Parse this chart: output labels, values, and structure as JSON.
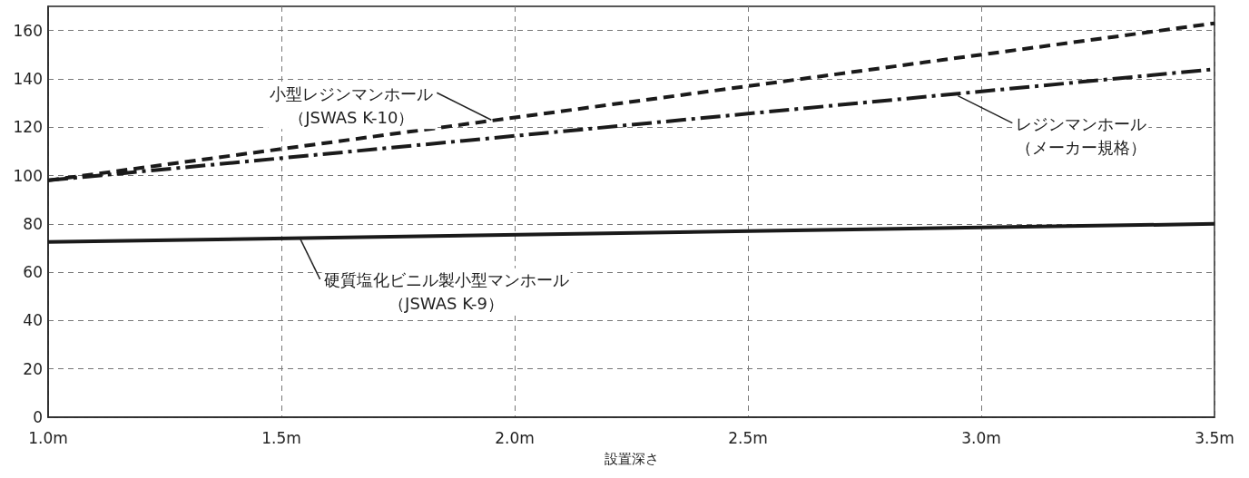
{
  "chart_data": {
    "type": "line",
    "xlabel": "設置深さ",
    "x": [
      1.0,
      3.5
    ],
    "series": [
      {
        "color": "#1a1a1a",
        "line_style": "dashed",
        "values": [
          98,
          163
        ]
      },
      {
        "color": "#1a1a1a",
        "line_style": "dashdot",
        "values": [
          98,
          144
        ]
      },
      {
        "color": "#1a1a1a",
        "line_style": "solid",
        "values": [
          72.5,
          80
        ]
      }
    ],
    "xlim": [
      1.0,
      3.5
    ],
    "xticks": [
      {
        "value": 1.0,
        "label": "1.0m"
      },
      {
        "value": 1.5,
        "label": "1.5m"
      },
      {
        "value": 2.0,
        "label": "2.0m"
      },
      {
        "value": 2.5,
        "label": "2.5m"
      },
      {
        "value": 3.0,
        "label": "3.0m"
      },
      {
        "value": 3.5,
        "label": "3.5m"
      }
    ],
    "ylim": [
      0,
      170
    ],
    "yticks": [
      0,
      20,
      40,
      60,
      80,
      100,
      120,
      140,
      160
    ],
    "grid": true,
    "marker": "none",
    "annotations": [
      {
        "text": "小型レジンマンホール（JSWAS K-10）",
        "x": 1.95,
        "y": 123
      },
      {
        "text": "レジンマンホール（メーカー規格）",
        "x": 2.95,
        "y": 133
      },
      {
        "text": "硬質塩化ビニル製小型マンホール（JSWAS K-9）",
        "x": 1.54,
        "y": 74
      }
    ]
  }
}
